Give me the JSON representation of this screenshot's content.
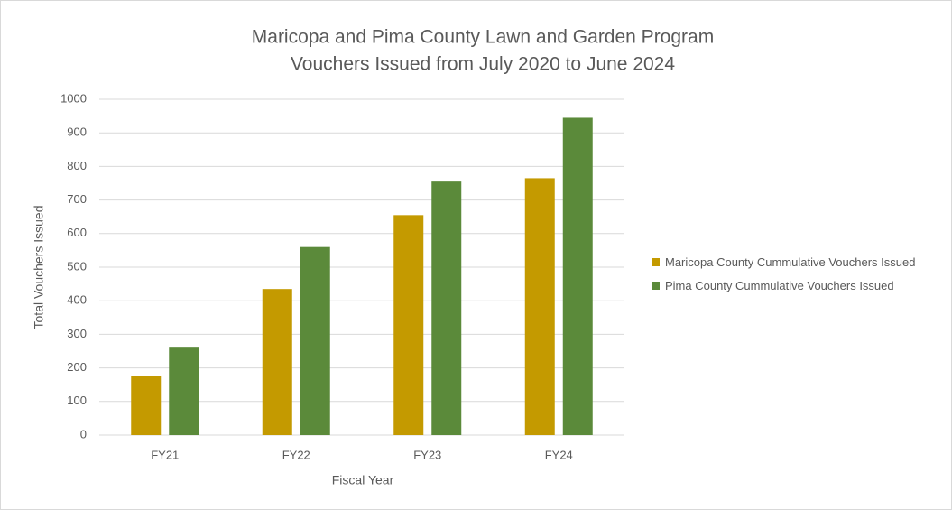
{
  "chart_data": {
    "type": "bar",
    "title": "Maricopa and Pima County Lawn and Garden Program",
    "subtitle": "Vouchers Issued from July 2020 to June 2024",
    "x_label": "Fiscal Year",
    "y_label": "Total Vouchers Issued",
    "categories": [
      "FY21",
      "FY22",
      "FY23",
      "FY24"
    ],
    "series": [
      {
        "name": "Maricopa County Cummulative Vouchers Issued",
        "color": "#c49a00",
        "values": [
          175,
          435,
          655,
          765
        ]
      },
      {
        "name": "Pima County Cummulative Vouchers Issued",
        "color": "#5b8a3a",
        "values": [
          263,
          560,
          755,
          945
        ]
      }
    ],
    "ylim": [
      0,
      1000
    ],
    "yticks": [
      0,
      100,
      200,
      300,
      400,
      500,
      600,
      700,
      800,
      900,
      1000
    ],
    "grid": true,
    "legend": "right"
  }
}
